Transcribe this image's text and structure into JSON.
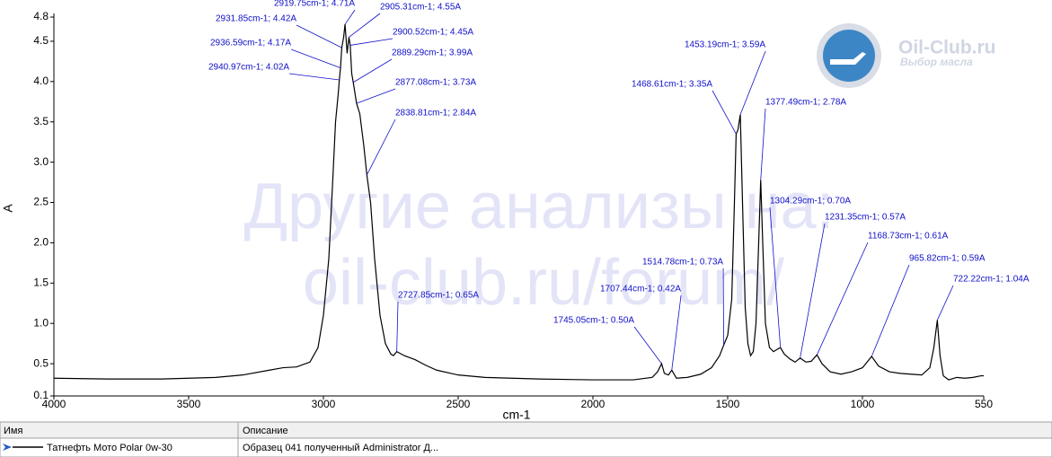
{
  "chart_data": {
    "type": "line",
    "xlabel": "cm-1",
    "ylabel": "A",
    "xlim": [
      4000,
      550
    ],
    "ylim": [
      0.1,
      4.8
    ],
    "xticks": [
      4000,
      3500,
      3000,
      2500,
      2000,
      1500,
      1000,
      550
    ],
    "yticks": [
      0.1,
      0.5,
      {
        "value": 1,
        "label": "1.0"
      },
      1.5,
      {
        "value": 2,
        "label": "2.0"
      },
      2.5,
      {
        "value": 3,
        "label": "3.0"
      },
      3.5,
      {
        "value": 4,
        "label": "4.0"
      },
      4.5,
      4.8
    ],
    "x": [
      4000,
      3800,
      3600,
      3400,
      3300,
      3200,
      3150,
      3100,
      3050,
      3020,
      3000,
      2980,
      2965,
      2955,
      2945,
      2940.97,
      2936.59,
      2931.85,
      2925,
      2919.75,
      2912,
      2905.31,
      2900.52,
      2895,
      2889.29,
      2877.08,
      2865,
      2850,
      2838.81,
      2825,
      2810,
      2790,
      2770,
      2750,
      2740,
      2727.85,
      2700,
      2660,
      2620,
      2580,
      2500,
      2400,
      2200,
      2000,
      1850,
      1780,
      1760,
      1745.05,
      1735,
      1720,
      1707.44,
      1690,
      1650,
      1600,
      1560,
      1530,
      1514.78,
      1500,
      1485,
      1475,
      1468.61,
      1462,
      1453.19,
      1445,
      1435,
      1425,
      1415,
      1405,
      1395,
      1385,
      1377.49,
      1370,
      1360,
      1345,
      1330,
      1315,
      1304.29,
      1290,
      1270,
      1250,
      1231.35,
      1210,
      1190,
      1168.73,
      1150,
      1120,
      1080,
      1040,
      1000,
      965.82,
      940,
      900,
      860,
      820,
      780,
      750,
      735,
      722.22,
      712,
      700,
      680,
      650,
      620,
      590,
      560,
      550
    ],
    "series": [
      {
        "name": "Татнефть Мото Polar 0w-30",
        "color": "#000000",
        "values": [
          0.32,
          0.31,
          0.31,
          0.33,
          0.36,
          0.42,
          0.45,
          0.46,
          0.52,
          0.7,
          1.1,
          1.8,
          2.8,
          3.5,
          3.85,
          4.02,
          4.17,
          4.42,
          4.55,
          4.71,
          4.35,
          4.55,
          4.45,
          4.1,
          3.99,
          3.73,
          3.6,
          3.2,
          2.84,
          2.5,
          1.8,
          1.1,
          0.75,
          0.62,
          0.6,
          0.65,
          0.6,
          0.55,
          0.48,
          0.42,
          0.36,
          0.33,
          0.31,
          0.3,
          0.3,
          0.33,
          0.4,
          0.5,
          0.38,
          0.36,
          0.42,
          0.32,
          0.33,
          0.37,
          0.45,
          0.6,
          0.73,
          0.85,
          1.3,
          2.5,
          3.35,
          3.4,
          3.59,
          2.5,
          1.2,
          0.75,
          0.6,
          0.65,
          1.0,
          2.0,
          2.78,
          2.0,
          1.0,
          0.7,
          0.65,
          0.68,
          0.7,
          0.62,
          0.56,
          0.52,
          0.57,
          0.52,
          0.53,
          0.61,
          0.5,
          0.4,
          0.37,
          0.4,
          0.45,
          0.59,
          0.47,
          0.4,
          0.38,
          0.37,
          0.36,
          0.45,
          0.7,
          1.04,
          0.6,
          0.35,
          0.3,
          0.33,
          0.32,
          0.33,
          0.35,
          0.35
        ]
      }
    ],
    "annotations": [
      {
        "text": "2919.75cm-1; 4.71A",
        "x": 2919.75,
        "y": 4.71
      },
      {
        "text": "2905.31cm-1; 4.55A",
        "x": 2905.31,
        "y": 4.55
      },
      {
        "text": "2931.85cm-1; 4.42A",
        "x": 2931.85,
        "y": 4.42
      },
      {
        "text": "2900.52cm-1; 4.45A",
        "x": 2900.52,
        "y": 4.45
      },
      {
        "text": "2936.59cm-1; 4.17A",
        "x": 2936.59,
        "y": 4.17
      },
      {
        "text": "2889.29cm-1; 3.99A",
        "x": 2889.29,
        "y": 3.99
      },
      {
        "text": "2940.97cm-1; 4.02A",
        "x": 2940.97,
        "y": 4.02
      },
      {
        "text": "2877.08cm-1; 3.73A",
        "x": 2877.08,
        "y": 3.73
      },
      {
        "text": "2838.81cm-1; 2.84A",
        "x": 2838.81,
        "y": 2.84
      },
      {
        "text": "2727.85cm-1; 0.65A",
        "x": 2727.85,
        "y": 0.65
      },
      {
        "text": "1453.19cm-1; 3.59A",
        "x": 1453.19,
        "y": 3.59
      },
      {
        "text": "1468.61cm-1; 3.35A",
        "x": 1468.61,
        "y": 3.35
      },
      {
        "text": "1377.49cm-1; 2.78A",
        "x": 1377.49,
        "y": 2.78
      },
      {
        "text": "1304.29cm-1; 0.70A",
        "x": 1304.29,
        "y": 0.7
      },
      {
        "text": "1231.35cm-1; 0.57A",
        "x": 1231.35,
        "y": 0.57
      },
      {
        "text": "1168.73cm-1; 0.61A",
        "x": 1168.73,
        "y": 0.61
      },
      {
        "text": "965.82cm-1; 0.59A",
        "x": 965.82,
        "y": 0.59
      },
      {
        "text": "722.22cm-1; 1.04A",
        "x": 722.22,
        "y": 1.04
      },
      {
        "text": "1514.78cm-1; 0.73A",
        "x": 1514.78,
        "y": 0.73
      },
      {
        "text": "1707.44cm-1; 0.42A",
        "x": 1707.44,
        "y": 0.42
      },
      {
        "text": "1745.05cm-1; 0.50A",
        "x": 1745.05,
        "y": 0.5
      }
    ]
  },
  "watermark": [
    "Другие анализы на:",
    "oil-club.ru/forum/"
  ],
  "logo": {
    "title": "Oil-Club.ru",
    "subtitle": "Выбор масла"
  },
  "table": {
    "headers": [
      "Имя",
      "Описание"
    ],
    "description": "Образец 041 полученный Administrator Д..."
  }
}
